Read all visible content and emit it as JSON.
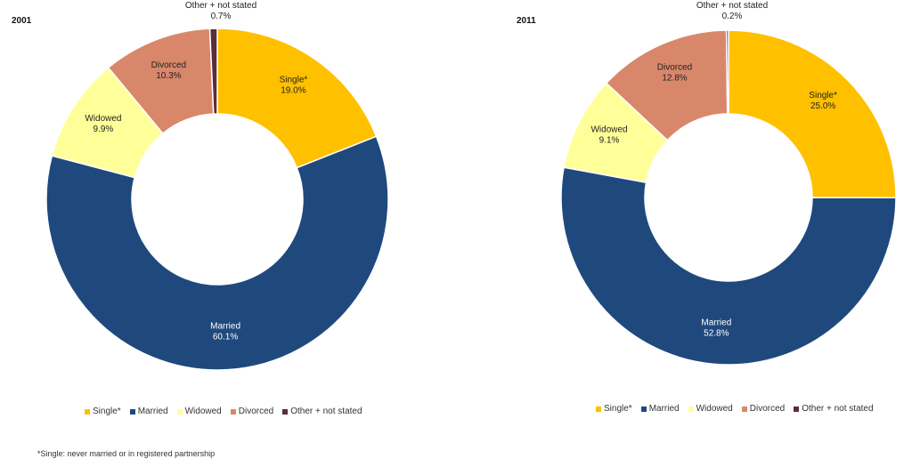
{
  "colors": {
    "Single*": "#FFC000",
    "Married": "#1F497D",
    "Widowed": "#FFFF99",
    "Divorced": "#D9876B",
    "Other + not stated": "#5B2C3A"
  },
  "chart_data": [
    {
      "type": "pie",
      "variant": "donut",
      "title": "2001",
      "categories": [
        "Single*",
        "Married",
        "Widowed",
        "Divorced",
        "Other + not stated"
      ],
      "values": [
        19.0,
        60.1,
        9.9,
        10.3,
        0.7
      ],
      "labels": [
        "19.0%",
        "60.1%",
        "9.9%",
        "10.3%",
        "0.7%"
      ],
      "legend": [
        "Single*",
        "Married",
        "Widowed",
        "Divorced",
        "Other + not stated"
      ],
      "legend_position": "bottom"
    },
    {
      "type": "pie",
      "variant": "donut",
      "title": "2011",
      "categories": [
        "Single*",
        "Married",
        "Widowed",
        "Divorced",
        "Other + not stated"
      ],
      "values": [
        25.0,
        52.8,
        9.1,
        12.8,
        0.2
      ],
      "labels": [
        "25.0%",
        "52.8%",
        "9.1%",
        "12.8%",
        "0.2%"
      ],
      "legend": [
        "Single*",
        "Married",
        "Widowed",
        "Divorced",
        "Other + not stated"
      ],
      "legend_position": "bottom"
    }
  ],
  "footnote": "*Single: never married or in registered partnership"
}
